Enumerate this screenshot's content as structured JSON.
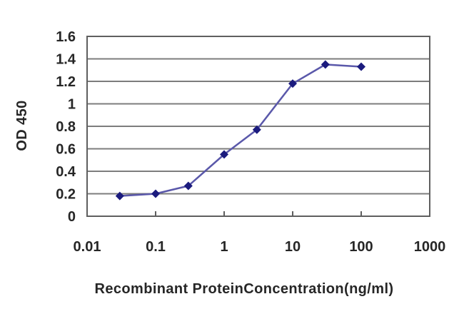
{
  "chart_data": {
    "type": "line",
    "xlabel": "Recombinant ProteinConcentration(ng/ml)",
    "ylabel": "OD 450",
    "x_scale": "log",
    "xlim": [
      0.01,
      1000
    ],
    "ylim": [
      0,
      1.6
    ],
    "x_ticks": [
      0.01,
      0.1,
      1,
      10,
      100,
      1000
    ],
    "x_tick_labels": [
      "0.01",
      "0.1",
      "1",
      "10",
      "100",
      "1000"
    ],
    "y_ticks": [
      0,
      0.2,
      0.4,
      0.6,
      0.8,
      1,
      1.2,
      1.4,
      1.6
    ],
    "y_tick_labels": [
      "0",
      "0.2",
      "0.4",
      "0.6",
      "0.8",
      "1",
      "1.2",
      "1.4",
      "1.6"
    ],
    "grid": "horizontal",
    "legend": "none",
    "series": [
      {
        "x": [
          0.03,
          0.1,
          0.3,
          1,
          3,
          10,
          30,
          100
        ],
        "y": [
          0.18,
          0.2,
          0.27,
          0.55,
          0.77,
          1.18,
          1.35,
          1.33
        ],
        "line_color": "#5a58aa",
        "marker": "diamond",
        "marker_color": "#1b1b7e"
      }
    ],
    "colors": {
      "grid": "#7d7d7d",
      "frame": "#5f5f5f",
      "text": "#262626",
      "background": "#ffffff"
    }
  }
}
